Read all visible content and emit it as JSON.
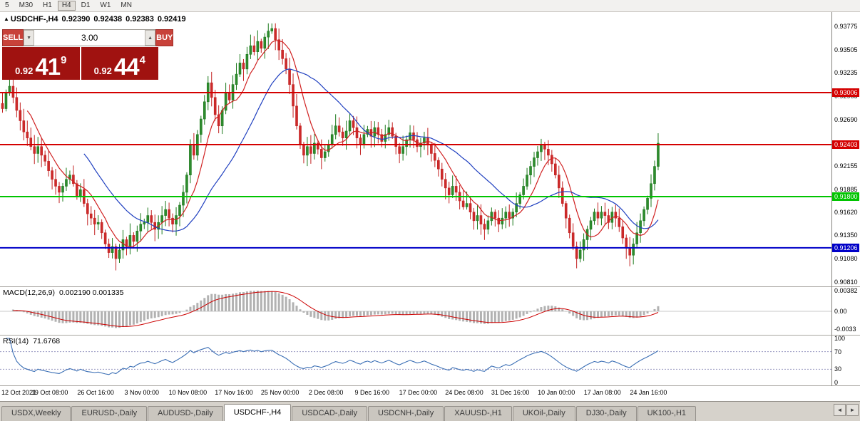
{
  "toolbar": {
    "buttons": [
      "5",
      "M30",
      "H1",
      "H4",
      "D1",
      "W1",
      "MN"
    ],
    "active": "H4"
  },
  "chart_header": {
    "direction_icon": "▲",
    "symbol_period": "USDCHF-,H4",
    "open": "0.92390",
    "high": "0.92438",
    "low": "0.92383",
    "close": "0.92419"
  },
  "trade_panel": {
    "sell_label": "SELL",
    "buy_label": "BUY",
    "volume": "3.00",
    "spinner_down": "▼",
    "spinner_up": "▲",
    "sell_price": {
      "base": "0.92",
      "big": "41",
      "sup": "9"
    },
    "buy_price": {
      "base": "0.92",
      "big": "44",
      "sup": "4"
    }
  },
  "macd_panel": {
    "label": "MACD(12,26,9)",
    "values": "0.002190 0.001335",
    "axis_ticks": [
      "0.00382",
      "0.00",
      "-0.0033"
    ]
  },
  "rsi_panel": {
    "label": "RSI(14)",
    "value": "71.6768",
    "axis_ticks": [
      "100",
      "70",
      "30",
      "0"
    ],
    "levels": [
      70,
      30
    ]
  },
  "price_axis_ticks": [
    "0.93775",
    "0.93505",
    "0.93235",
    "0.92965",
    "0.92690",
    "0.92420",
    "0.92155",
    "0.91885",
    "0.91620",
    "0.91350",
    "0.91080",
    "0.90810"
  ],
  "time_axis_labels": [
    "12 Oct 2021",
    "19 Oct 08:00",
    "26 Oct 16:00",
    "3 Nov 00:00",
    "10 Nov 08:00",
    "17 Nov 16:00",
    "25 Nov 00:00",
    "2 Dec 08:00",
    "9 Dec 16:00",
    "17 Dec 00:00",
    "24 Dec 08:00",
    "31 Dec 16:00",
    "10 Jan 00:00",
    "17 Jan 08:00",
    "24 Jan 16:00"
  ],
  "levels": [
    {
      "label": "0.93006",
      "price": 0.93006,
      "color": "#d40000"
    },
    {
      "label": "0.92403",
      "price": 0.92403,
      "color": "#d40000"
    },
    {
      "label": "0.91800",
      "price": 0.918,
      "color": "#00c400"
    },
    {
      "label": "0.91206",
      "price": 0.91206,
      "color": "#0000c8"
    }
  ],
  "tabs": {
    "items": [
      "USDX,Weekly",
      "EURUSD-,Daily",
      "AUDUSD-,Daily",
      "USDCHF-,H4",
      "USDCAD-,Daily",
      "USDCNH-,Daily",
      "XAUUSD-,H1",
      "UKOil-,Daily",
      "DJ30-,Daily",
      "UK100-,H1"
    ],
    "active_index": 3
  },
  "tab_nav": {
    "left": "◄",
    "right": "►"
  },
  "chart_data": {
    "type": "candlestick",
    "title": "USDCHF-,H4",
    "symbol": "USDCHF-",
    "timeframe": "H4",
    "ylim": [
      0.9075,
      0.9394
    ],
    "ohlc_current": {
      "open": 0.9239,
      "high": 0.92438,
      "low": 0.92383,
      "close": 0.92419
    },
    "horizontal_levels": [
      0.93006,
      0.92403,
      0.918,
      0.91206
    ],
    "moving_averages": [
      {
        "name": "fast-ma",
        "period": 8,
        "color": "#d02020"
      },
      {
        "name": "slow-ma",
        "period": 24,
        "color": "#2040c0"
      }
    ],
    "indicators": [
      {
        "name": "MACD",
        "params": "12,26,9",
        "current": [
          0.00219,
          0.001335
        ],
        "axis": [
          0.00382,
          0.0,
          -0.0033
        ]
      },
      {
        "name": "RSI",
        "params": "14",
        "current": 71.6768,
        "axis": [
          100,
          70,
          30,
          0
        ],
        "levels": [
          70,
          30
        ]
      }
    ],
    "closes": [
      0.9282,
      0.93,
      0.9308,
      0.9295,
      0.928,
      0.9268,
      0.9255,
      0.9248,
      0.9238,
      0.923,
      0.9238,
      0.9228,
      0.9221,
      0.921,
      0.92,
      0.9192,
      0.9185,
      0.9192,
      0.92,
      0.9205,
      0.9195,
      0.918,
      0.9188,
      0.9172,
      0.916,
      0.9155,
      0.9148,
      0.915,
      0.9138,
      0.9125,
      0.9115,
      0.9122,
      0.9108,
      0.9118,
      0.913,
      0.9122,
      0.9135,
      0.9128,
      0.914,
      0.9148,
      0.915,
      0.9158,
      0.915,
      0.9142,
      0.915,
      0.9158,
      0.9165,
      0.9155,
      0.9148,
      0.9158,
      0.917,
      0.9185,
      0.9205,
      0.924,
      0.9228,
      0.9252,
      0.927,
      0.929,
      0.9312,
      0.9295,
      0.9275,
      0.9262,
      0.928,
      0.93,
      0.9292,
      0.931,
      0.9322,
      0.9335,
      0.9328,
      0.9345,
      0.9355,
      0.9348,
      0.936,
      0.9352,
      0.9365,
      0.9372,
      0.9375,
      0.9362,
      0.935,
      0.934,
      0.9328,
      0.931,
      0.9285,
      0.9262,
      0.924,
      0.9228,
      0.9238,
      0.923,
      0.9242,
      0.9235,
      0.9225,
      0.9232,
      0.924,
      0.9252,
      0.9262,
      0.9255,
      0.9248,
      0.9256,
      0.9268,
      0.926,
      0.9248,
      0.924,
      0.9252,
      0.9258,
      0.925,
      0.926,
      0.9252,
      0.9244,
      0.9252,
      0.926,
      0.925,
      0.9238,
      0.923,
      0.9238,
      0.9246,
      0.9254,
      0.9246,
      0.9238,
      0.9242,
      0.9248,
      0.924,
      0.923,
      0.9222,
      0.9212,
      0.92,
      0.919,
      0.9182,
      0.9192,
      0.9185,
      0.9175,
      0.9168,
      0.9172,
      0.9162,
      0.9152,
      0.9158,
      0.9148,
      0.9142,
      0.9152,
      0.9162,
      0.9155,
      0.9148,
      0.9155,
      0.9162,
      0.9155,
      0.9162,
      0.9172,
      0.9182,
      0.9192,
      0.9205,
      0.9215,
      0.9225,
      0.9232,
      0.924,
      0.9235,
      0.9228,
      0.9218,
      0.9205,
      0.919,
      0.9172,
      0.9155,
      0.9138,
      0.9122,
      0.9108,
      0.9118,
      0.913,
      0.9142,
      0.9152,
      0.9162,
      0.9155,
      0.9162,
      0.9158,
      0.915,
      0.9162,
      0.9155,
      0.9145,
      0.9132,
      0.912,
      0.9112,
      0.9125,
      0.9138,
      0.9152,
      0.9165,
      0.9178,
      0.9195,
      0.9215,
      0.92419
    ]
  }
}
